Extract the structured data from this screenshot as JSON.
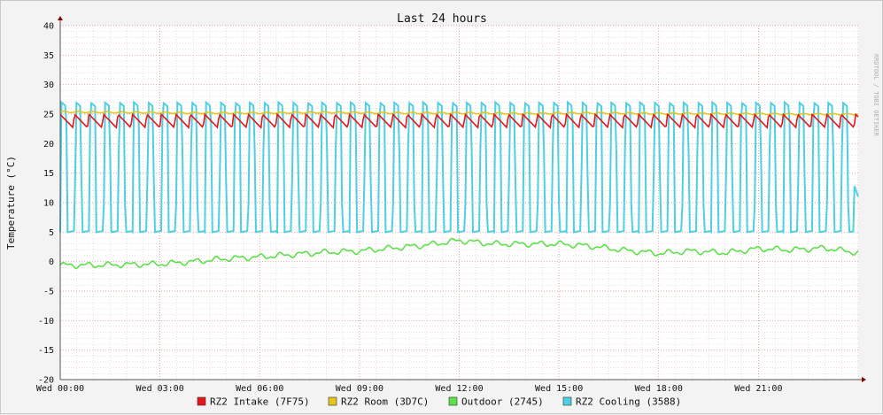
{
  "chart_data": {
    "type": "line",
    "title": "Last 24 hours",
    "ylabel": "Temperature (°C)",
    "watermark": "RRDTOOL / TOBI OETIKER",
    "ylim": [
      -20,
      40
    ],
    "y_ticks": [
      40,
      35,
      30,
      25,
      20,
      15,
      10,
      5,
      0,
      -5,
      -10,
      -15,
      -20
    ],
    "x_range_hours": [
      0,
      24
    ],
    "x_ticks": [
      {
        "label": "Wed 00:00",
        "hour": 0
      },
      {
        "label": "Wed 03:00",
        "hour": 3
      },
      {
        "label": "Wed 06:00",
        "hour": 6
      },
      {
        "label": "Wed 09:00",
        "hour": 9
      },
      {
        "label": "Wed 12:00",
        "hour": 12
      },
      {
        "label": "Wed 15:00",
        "hour": 15
      },
      {
        "label": "Wed 18:00",
        "hour": 18
      },
      {
        "label": "Wed 21:00",
        "hour": 21
      }
    ],
    "grid": true,
    "legend_position": "bottom",
    "series": [
      {
        "name": "RZ2 Intake (7F75)",
        "color": "#e8151b",
        "x": [
          0,
          1,
          2,
          3,
          4,
          5,
          6,
          7,
          8,
          9,
          10,
          11,
          12,
          13,
          14,
          15,
          16,
          17,
          18,
          19,
          20,
          21,
          22,
          23,
          24
        ],
        "y": [
          23.5,
          23.6,
          23.8,
          23.7,
          23.9,
          23.8,
          23.8,
          23.7,
          23.6,
          23.5,
          23.5,
          23.4,
          23.4,
          23.4,
          23.5,
          23.5,
          23.4,
          23.5,
          23.4,
          23.5,
          23.4,
          23.5,
          23.4,
          23.4,
          23.5
        ],
        "cycle": {
          "high": 25.0,
          "low": 22.7
        }
      },
      {
        "name": "RZ2 Room (3D7C)",
        "color": "#e5c51b",
        "x": [
          0,
          2,
          4,
          6,
          8,
          10,
          12,
          14,
          16,
          18,
          20,
          22,
          24
        ],
        "y": [
          25.4,
          25.3,
          25.2,
          25.2,
          25.3,
          25.2,
          25.2,
          25.1,
          25.2,
          25.1,
          25.1,
          25.0,
          25.0
        ]
      },
      {
        "name": "Outdoor (2745)",
        "color": "#5ce14b",
        "x": [
          0,
          1,
          2,
          3,
          4,
          5,
          6,
          7,
          8,
          9,
          10,
          11,
          12,
          13,
          14,
          15,
          16,
          17,
          18,
          19,
          20,
          21,
          22,
          23,
          24
        ],
        "y": [
          -0.6,
          -0.6,
          -0.5,
          -0.4,
          0,
          0.5,
          0.8,
          1.2,
          1.6,
          1.8,
          2.3,
          2.8,
          3.6,
          3.0,
          3.0,
          3.0,
          2.6,
          1.9,
          1.4,
          1.8,
          1.5,
          2.2,
          2.0,
          2.3,
          1.5
        ]
      },
      {
        "name": "RZ2 Cooling (3588)",
        "color": "#4dd0e1",
        "x": [
          0,
          1,
          2,
          3,
          4,
          5,
          6,
          7,
          8,
          9,
          10,
          11,
          12,
          13,
          14,
          15,
          16,
          17,
          18,
          19,
          20,
          21,
          22,
          23,
          24
        ],
        "y": [
          5,
          27,
          5,
          27,
          5,
          27,
          5,
          27,
          5,
          27,
          5,
          27,
          5,
          27,
          5,
          27,
          5,
          27,
          5,
          27,
          5,
          27,
          5,
          27,
          11
        ],
        "cycle": {
          "high": 27.0,
          "low": 5.0
        }
      }
    ]
  }
}
